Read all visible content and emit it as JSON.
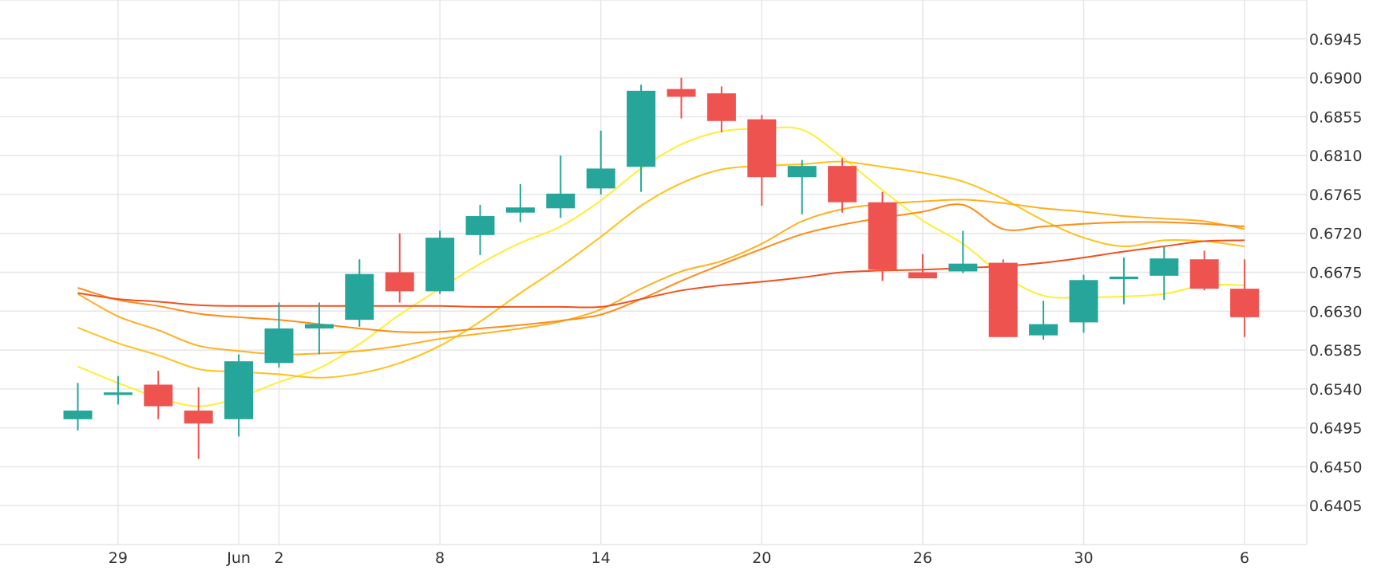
{
  "chart_data": {
    "type": "candlestick",
    "x_tick_labels": [
      {
        "label": "29",
        "index": 1
      },
      {
        "label": "Jun",
        "index": 4
      },
      {
        "label": "2",
        "index": 5
      },
      {
        "label": "8",
        "index": 9
      },
      {
        "label": "14",
        "index": 13
      },
      {
        "label": "20",
        "index": 17
      },
      {
        "label": "26",
        "index": 21
      },
      {
        "label": "30",
        "index": 25
      },
      {
        "label": "6",
        "index": 29
      }
    ],
    "y_ticks": [
      "0.6945",
      "0.6900",
      "0.6855",
      "0.6810",
      "0.6765",
      "0.6720",
      "0.6675",
      "0.6630",
      "0.6585",
      "0.6540",
      "0.6495",
      "0.6450",
      "0.6405"
    ],
    "ylim": [
      0.636,
      0.699
    ],
    "candles": [
      {
        "open": 0.6505,
        "high": 0.6547,
        "low": 0.6492,
        "close": 0.6515
      },
      {
        "open": 0.6533,
        "high": 0.6555,
        "low": 0.6522,
        "close": 0.6536
      },
      {
        "open": 0.6545,
        "high": 0.6561,
        "low": 0.6505,
        "close": 0.652
      },
      {
        "open": 0.6515,
        "high": 0.6542,
        "low": 0.6459,
        "close": 0.65
      },
      {
        "open": 0.6505,
        "high": 0.658,
        "low": 0.6485,
        "close": 0.6572
      },
      {
        "open": 0.657,
        "high": 0.664,
        "low": 0.6565,
        "close": 0.661
      },
      {
        "open": 0.661,
        "high": 0.664,
        "low": 0.658,
        "close": 0.6615
      },
      {
        "open": 0.662,
        "high": 0.669,
        "low": 0.6612,
        "close": 0.6673
      },
      {
        "open": 0.6675,
        "high": 0.672,
        "low": 0.664,
        "close": 0.6653
      },
      {
        "open": 0.6653,
        "high": 0.6723,
        "low": 0.665,
        "close": 0.6715
      },
      {
        "open": 0.6718,
        "high": 0.6753,
        "low": 0.6695,
        "close": 0.674
      },
      {
        "open": 0.6744,
        "high": 0.6777,
        "low": 0.6733,
        "close": 0.675
      },
      {
        "open": 0.6749,
        "high": 0.681,
        "low": 0.6738,
        "close": 0.6766
      },
      {
        "open": 0.6772,
        "high": 0.6839,
        "low": 0.6765,
        "close": 0.6795
      },
      {
        "open": 0.6797,
        "high": 0.6892,
        "low": 0.6768,
        "close": 0.6885
      },
      {
        "open": 0.6887,
        "high": 0.69,
        "low": 0.6853,
        "close": 0.6878
      },
      {
        "open": 0.6882,
        "high": 0.689,
        "low": 0.6837,
        "close": 0.685
      },
      {
        "open": 0.6852,
        "high": 0.6857,
        "low": 0.6752,
        "close": 0.6785
      },
      {
        "open": 0.6785,
        "high": 0.6805,
        "low": 0.6742,
        "close": 0.6798
      },
      {
        "open": 0.6798,
        "high": 0.6807,
        "low": 0.6744,
        "close": 0.6756
      },
      {
        "open": 0.6756,
        "high": 0.6768,
        "low": 0.6665,
        "close": 0.6678
      },
      {
        "open": 0.6675,
        "high": 0.6696,
        "low": 0.6668,
        "close": 0.6668
      },
      {
        "open": 0.6676,
        "high": 0.6723,
        "low": 0.6674,
        "close": 0.6685
      },
      {
        "open": 0.6686,
        "high": 0.669,
        "low": 0.66,
        "close": 0.66
      },
      {
        "open": 0.6602,
        "high": 0.6642,
        "low": 0.6597,
        "close": 0.6615
      },
      {
        "open": 0.6617,
        "high": 0.6672,
        "low": 0.6605,
        "close": 0.6666
      },
      {
        "open": 0.6667,
        "high": 0.6692,
        "low": 0.6638,
        "close": 0.667
      },
      {
        "open": 0.6671,
        "high": 0.6705,
        "low": 0.6643,
        "close": 0.6691
      },
      {
        "open": 0.669,
        "high": 0.67,
        "low": 0.6654,
        "close": 0.6656
      },
      {
        "open": 0.6656,
        "high": 0.669,
        "low": 0.66,
        "close": 0.6623
      }
    ],
    "moving_averages": [
      {
        "color": "#ffee33",
        "values": [
          0.6566,
          0.6547,
          0.653,
          0.652,
          0.653,
          0.6548,
          0.6564,
          0.6592,
          0.6626,
          0.6656,
          0.6685,
          0.6709,
          0.6728,
          0.6758,
          0.6795,
          0.6823,
          0.6838,
          0.6841,
          0.684,
          0.6808,
          0.677,
          0.6735,
          0.6708,
          0.6671,
          0.6648,
          0.6646,
          0.6647,
          0.665,
          0.666,
          0.666
        ]
      },
      {
        "color": "#ffc21a",
        "values": [
          0.6611,
          0.6593,
          0.6579,
          0.6563,
          0.656,
          0.6557,
          0.6553,
          0.6558,
          0.657,
          0.659,
          0.6618,
          0.6651,
          0.6682,
          0.6716,
          0.6752,
          0.6778,
          0.6794,
          0.6798,
          0.68,
          0.6803,
          0.6797,
          0.679,
          0.678,
          0.676,
          0.6735,
          0.6715,
          0.6705,
          0.6712,
          0.6711,
          0.6705
        ]
      },
      {
        "color": "#ffb01f",
        "values": [
          0.665,
          0.6624,
          0.6608,
          0.659,
          0.6584,
          0.658,
          0.6581,
          0.6584,
          0.659,
          0.6598,
          0.6604,
          0.661,
          0.6618,
          0.6632,
          0.6656,
          0.6676,
          0.6688,
          0.6708,
          0.6734,
          0.6748,
          0.6754,
          0.6757,
          0.6759,
          0.6755,
          0.6749,
          0.6745,
          0.674,
          0.6737,
          0.6734,
          0.6725
        ]
      },
      {
        "color": "#ff8c1a",
        "values": [
          0.6657,
          0.6643,
          0.6636,
          0.6627,
          0.6623,
          0.662,
          0.6615,
          0.661,
          0.6606,
          0.6606,
          0.661,
          0.6614,
          0.6619,
          0.6626,
          0.6644,
          0.6665,
          0.6684,
          0.6702,
          0.6719,
          0.673,
          0.6738,
          0.6745,
          0.6753,
          0.6725,
          0.6728,
          0.6731,
          0.6733,
          0.6733,
          0.6731,
          0.6728
        ]
      },
      {
        "color": "#f0501e",
        "values": [
          0.6651,
          0.6644,
          0.6641,
          0.6637,
          0.6636,
          0.6636,
          0.6636,
          0.6636,
          0.6636,
          0.6636,
          0.6635,
          0.6635,
          0.6635,
          0.6635,
          0.6644,
          0.6654,
          0.666,
          0.6664,
          0.6669,
          0.6675,
          0.6677,
          0.6678,
          0.668,
          0.6682,
          0.6686,
          0.6692,
          0.6699,
          0.6705,
          0.6711,
          0.6712
        ]
      }
    ],
    "up_color": "#26a69a",
    "down_color": "#ef5350",
    "grid": true
  }
}
